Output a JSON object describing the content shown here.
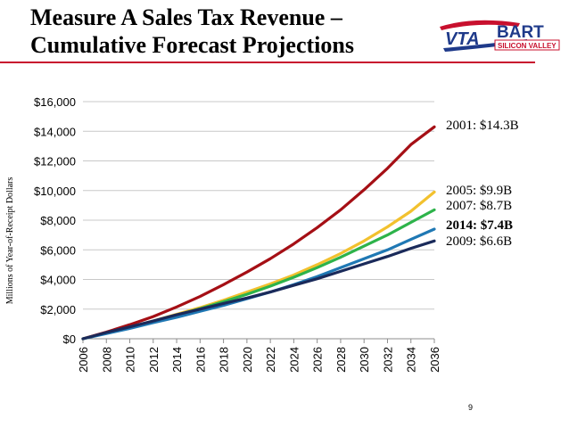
{
  "slide": {
    "title_line1": "Measure A Sales Tax Revenue –",
    "title_line2": "Cumulative Forecast Projections",
    "page_number": "9"
  },
  "logo": {
    "vta_text": "VTA",
    "bart_text": "BART",
    "subtitle": "SILICON VALLEY",
    "colors": {
      "blue": "#1f3a8a",
      "red": "#c8102e"
    }
  },
  "chart_data": {
    "type": "line",
    "ylabel": "Millions of Year-of-Receipt Dollars",
    "xlabel": "",
    "x": [
      2006,
      2008,
      2010,
      2012,
      2014,
      2016,
      2018,
      2020,
      2022,
      2024,
      2026,
      2028,
      2030,
      2032,
      2034,
      2036
    ],
    "x_tick_labels": [
      "2006",
      "2008",
      "2010",
      "2012",
      "2014",
      "2016",
      "2018",
      "2020",
      "2022",
      "2024",
      "2026",
      "2028",
      "2030",
      "2032",
      "2034",
      "2036"
    ],
    "ylim": [
      0,
      16000
    ],
    "y_ticks": [
      0,
      2000,
      4000,
      6000,
      8000,
      10000,
      12000,
      14000,
      16000
    ],
    "y_tick_labels": [
      "$0",
      "$2,000",
      "$4,000",
      "$6,000",
      "$8,000",
      "$10,000",
      "$12,000",
      "$14,000",
      "$16,000"
    ],
    "grid": "horizontal",
    "legend": "none",
    "series": [
      {
        "color": "#a50f15",
        "label": "2001: $14.3B",
        "bold": false,
        "values": [
          0,
          450,
          950,
          1500,
          2150,
          2850,
          3650,
          4500,
          5400,
          6400,
          7500,
          8700,
          10050,
          11500,
          13100,
          14300
        ]
      },
      {
        "color": "#f2c12e",
        "label": "2005: $9.9B",
        "bold": false,
        "values": [
          0,
          380,
          780,
          1200,
          1650,
          2100,
          2600,
          3150,
          3700,
          4300,
          5000,
          5750,
          6600,
          7550,
          8600,
          9900
        ]
      },
      {
        "color": "#2db34a",
        "label": "2007: $8.7B",
        "bold": false,
        "values": [
          0,
          380,
          760,
          1170,
          1600,
          2030,
          2500,
          3000,
          3550,
          4150,
          4800,
          5500,
          6250,
          7000,
          7850,
          8700
        ]
      },
      {
        "color": "#1f78b4",
        "label": "2014: $7.4B",
        "bold": true,
        "values": [
          0,
          350,
          700,
          1080,
          1450,
          1850,
          2250,
          2700,
          3150,
          3650,
          4200,
          4800,
          5400,
          6000,
          6700,
          7400
        ]
      },
      {
        "color": "#1a2a5a",
        "label": "2009: $6.6B",
        "bold": false,
        "values": [
          0,
          420,
          800,
          1200,
          1620,
          2000,
          2380,
          2750,
          3150,
          3600,
          4050,
          4550,
          5050,
          5550,
          6100,
          6600
        ]
      }
    ]
  }
}
